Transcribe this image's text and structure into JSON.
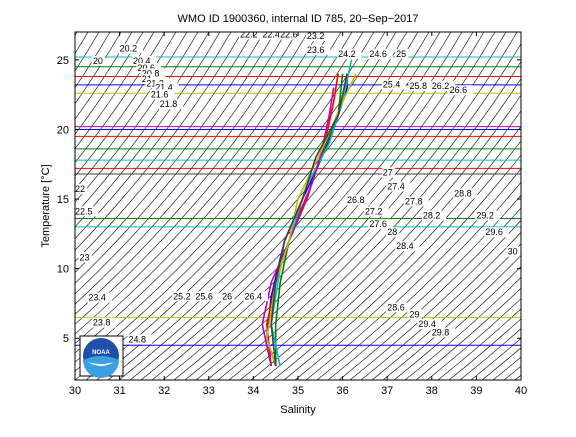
{
  "chart_data": {
    "type": "line",
    "title": "WMO ID 1900360, internal ID 785, 20−Sep−2017",
    "xlabel": "Salinity",
    "ylabel": "Temperature [°C]",
    "xlim": [
      30,
      40
    ],
    "ylim": [
      2,
      27
    ],
    "xticks": [
      "30",
      "31",
      "32",
      "33",
      "34",
      "35",
      "36",
      "37",
      "38",
      "39",
      "40"
    ],
    "yticks": [
      "5",
      "10",
      "15",
      "20",
      "25"
    ],
    "grid": false,
    "series": [
      {
        "color": "#0000ff",
        "values": [
          [
            34.5,
            3
          ],
          [
            34.3,
            5
          ],
          [
            34.4,
            8
          ],
          [
            34.7,
            12
          ],
          [
            35.1,
            15
          ],
          [
            35.4,
            17
          ],
          [
            35.8,
            20
          ],
          [
            36.1,
            23
          ],
          [
            36.1,
            24
          ]
        ]
      },
      {
        "color": "#008000",
        "values": [
          [
            34.5,
            3
          ],
          [
            34.5,
            6
          ],
          [
            34.6,
            9
          ],
          [
            34.8,
            12
          ],
          [
            35.2,
            15
          ],
          [
            35.5,
            18
          ],
          [
            35.9,
            21
          ],
          [
            36.0,
            24
          ]
        ]
      },
      {
        "color": "#ff0000",
        "values": [
          [
            34.4,
            3
          ],
          [
            34.3,
            6
          ],
          [
            34.5,
            9
          ],
          [
            34.9,
            13
          ],
          [
            35.3,
            16
          ],
          [
            35.6,
            19
          ],
          [
            35.8,
            22
          ],
          [
            35.9,
            24
          ]
        ]
      },
      {
        "color": "#00bfbf",
        "values": [
          [
            34.6,
            3
          ],
          [
            34.4,
            6
          ],
          [
            34.6,
            10
          ],
          [
            34.9,
            13
          ],
          [
            35.2,
            16
          ],
          [
            35.7,
            19
          ],
          [
            36.0,
            22
          ],
          [
            36.2,
            25
          ]
        ]
      },
      {
        "color": "#bf00bf",
        "values": [
          [
            34.4,
            3
          ],
          [
            34.2,
            6
          ],
          [
            34.4,
            9
          ],
          [
            34.8,
            12
          ],
          [
            35.2,
            15
          ],
          [
            35.5,
            18
          ],
          [
            35.7,
            21
          ],
          [
            35.8,
            23
          ]
        ]
      },
      {
        "color": "#bfbf00",
        "values": [
          [
            34.5,
            3
          ],
          [
            34.3,
            5
          ],
          [
            34.5,
            9
          ],
          [
            34.8,
            12
          ],
          [
            35.0,
            15
          ],
          [
            35.6,
            19
          ],
          [
            36.0,
            22
          ],
          [
            36.3,
            24
          ]
        ]
      },
      {
        "color": "#404040",
        "values": [
          [
            34.5,
            3
          ],
          [
            34.4,
            6
          ],
          [
            34.5,
            9
          ],
          [
            34.7,
            12
          ],
          [
            35.1,
            15
          ],
          [
            35.4,
            18
          ],
          [
            35.9,
            21
          ],
          [
            36.1,
            24
          ]
        ]
      }
    ],
    "sigma_labels": [
      {
        "text": "20.2",
        "s": 31.0,
        "t": 25.6
      },
      {
        "text": "20.4",
        "s": 31.3,
        "t": 24.7
      },
      {
        "text": "20",
        "s": 30.4,
        "t": 24.7
      },
      {
        "text": "20.6",
        "s": 31.4,
        "t": 24.2
      },
      {
        "text": "20.8",
        "s": 31.5,
        "t": 23.8
      },
      {
        "text": "21",
        "s": 31.5,
        "t": 23.4
      },
      {
        "text": "21.2",
        "s": 31.6,
        "t": 23.1
      },
      {
        "text": "21.4",
        "s": 31.8,
        "t": 22.8
      },
      {
        "text": "21.6",
        "s": 31.7,
        "t": 22.3
      },
      {
        "text": "21.8",
        "s": 31.9,
        "t": 21.6
      },
      {
        "text": "22.2",
        "s": 33.7,
        "t": 26.6
      },
      {
        "text": "22.4",
        "s": 34.2,
        "t": 26.6
      },
      {
        "text": "22.6",
        "s": 34.6,
        "t": 26.6
      },
      {
        "text": "23.2",
        "s": 35.2,
        "t": 26.5
      },
      {
        "text": "23.6",
        "s": 35.2,
        "t": 25.5
      },
      {
        "text": "24.2",
        "s": 35.9,
        "t": 25.2
      },
      {
        "text": "24.6",
        "s": 36.6,
        "t": 25.2
      },
      {
        "text": "25",
        "s": 37.2,
        "t": 25.2
      },
      {
        "text": "25.4",
        "s": 36.9,
        "t": 23.0
      },
      {
        "text": "25.8",
        "s": 37.5,
        "t": 22.9
      },
      {
        "text": "26.2",
        "s": 38.0,
        "t": 22.9
      },
      {
        "text": "26.6",
        "s": 38.4,
        "t": 22.6
      },
      {
        "text": "27",
        "s": 36.9,
        "t": 16.7
      },
      {
        "text": "27.4",
        "s": 37.0,
        "t": 15.7
      },
      {
        "text": "26.8",
        "s": 36.1,
        "t": 14.7
      },
      {
        "text": "27.2",
        "s": 36.5,
        "t": 13.9
      },
      {
        "text": "27.6",
        "s": 36.6,
        "t": 13.0
      },
      {
        "text": "27.8",
        "s": 37.4,
        "t": 14.6
      },
      {
        "text": "28",
        "s": 37.0,
        "t": 12.4
      },
      {
        "text": "28.2",
        "s": 37.8,
        "t": 13.6
      },
      {
        "text": "28.4",
        "s": 37.2,
        "t": 11.4
      },
      {
        "text": "28.8",
        "s": 38.5,
        "t": 15.2
      },
      {
        "text": "29.2",
        "s": 39.0,
        "t": 13.6
      },
      {
        "text": "29.6",
        "s": 39.2,
        "t": 12.4
      },
      {
        "text": "30",
        "s": 39.7,
        "t": 11.0
      },
      {
        "text": "28.6",
        "s": 37.0,
        "t": 7.0
      },
      {
        "text": "29",
        "s": 37.5,
        "t": 6.5
      },
      {
        "text": "29.4",
        "s": 37.7,
        "t": 5.8
      },
      {
        "text": "29.8",
        "s": 38.0,
        "t": 5.2
      },
      {
        "text": "22",
        "s": 30.0,
        "t": 15.5
      },
      {
        "text": "22.5",
        "s": 30.0,
        "t": 13.9
      },
      {
        "text": "23",
        "s": 30.1,
        "t": 10.6
      },
      {
        "text": "23.4",
        "s": 30.3,
        "t": 7.7
      },
      {
        "text": "23.8",
        "s": 30.4,
        "t": 5.9
      },
      {
        "text": "24.8",
        "s": 31.2,
        "t": 4.7
      },
      {
        "text": "25.2",
        "s": 32.2,
        "t": 7.8
      },
      {
        "text": "25.6",
        "s": 32.7,
        "t": 7.8
      },
      {
        "text": "26",
        "s": 33.3,
        "t": 7.8
      },
      {
        "text": "26.4",
        "s": 33.8,
        "t": 7.8
      }
    ],
    "logo_text": "NOAA"
  }
}
